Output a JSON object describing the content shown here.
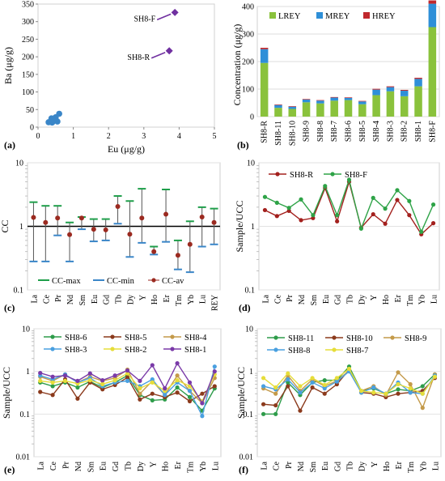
{
  "chart_data": [
    {
      "panel": "(a)",
      "type": "scatter",
      "xlabel": "Eu (μg/g)",
      "ylabel": "Ba (μg/g)",
      "xlim": [
        0,
        5
      ],
      "ylim": [
        0,
        350
      ],
      "xticks": [
        "0",
        "1",
        "2",
        "3",
        "4",
        "5"
      ],
      "yticks": [
        "0",
        "50",
        "100",
        "150",
        "200",
        "250",
        "300",
        "350"
      ],
      "grid": false,
      "points": [
        {
          "x": 0.3,
          "y": 14
        },
        {
          "x": 0.35,
          "y": 16
        },
        {
          "x": 0.4,
          "y": 13
        },
        {
          "x": 0.45,
          "y": 20
        },
        {
          "x": 0.38,
          "y": 25
        },
        {
          "x": 0.5,
          "y": 28
        },
        {
          "x": 0.55,
          "y": 16
        },
        {
          "x": 0.6,
          "y": 38
        }
      ],
      "marker_color": "#3a86c8",
      "labeled_points": [
        {
          "label": "SH8-F",
          "x": 3.88,
          "y": 326,
          "color": "#7030a0"
        },
        {
          "label": "SH8-R",
          "x": 3.72,
          "y": 217,
          "color": "#7030a0"
        }
      ]
    },
    {
      "panel": "(b)",
      "type": "bar",
      "stacked": true,
      "ylabel": "Concentration (μg/g)",
      "ylim": [
        0,
        400
      ],
      "yticks": [
        "0",
        "100",
        "200",
        "300",
        "400"
      ],
      "categories": [
        "SH8-R",
        "SH8-11",
        "SH8-10",
        "SH8-9",
        "SH8-8",
        "SH8-7",
        "SH8-6",
        "SH8-5",
        "SH8-4",
        "SH8-3",
        "SH8-2",
        "SH8-1",
        "SH8-F"
      ],
      "series": [
        {
          "name": "LREY",
          "color": "#8ac23c",
          "values": [
            195,
            32,
            28,
            52,
            48,
            58,
            60,
            45,
            78,
            92,
            74,
            110,
            325
          ]
        },
        {
          "name": "MREY",
          "color": "#2e8fd8",
          "values": [
            50,
            10,
            8,
            10,
            10,
            11,
            8,
            10,
            20,
            15,
            20,
            27,
            85
          ]
        },
        {
          "name": "HREY",
          "color": "#c0282d",
          "values": [
            5,
            2,
            2,
            2,
            2,
            2,
            2,
            2,
            3,
            3,
            3,
            4,
            12
          ]
        }
      ],
      "legend": "top-left"
    },
    {
      "panel": "(c)",
      "type": "line",
      "ylabel": "CC",
      "yscale": "log",
      "ylim": [
        0.1,
        10
      ],
      "yticks": [
        "0.1",
        "1",
        "10"
      ],
      "categories": [
        "La",
        "Ce",
        "Pr",
        "Nd",
        "Sm",
        "Eu",
        "Gd",
        "Tb",
        "Dy",
        "Y",
        "Ho",
        "Er",
        "Tm",
        "Yb",
        "Lu",
        "REY"
      ],
      "series": [
        {
          "name": "CC-max",
          "color": "#1e9e4a",
          "values": [
            2.4,
            2.1,
            2.1,
            1.15,
            1.4,
            1.3,
            1.3,
            3.0,
            2.5,
            3.9,
            0.48,
            3.8,
            0.6,
            1.2,
            2.0,
            1.9
          ]
        },
        {
          "name": "CC-min",
          "color": "#3a86c8",
          "values": [
            0.28,
            0.28,
            0.72,
            0.28,
            0.9,
            0.58,
            0.6,
            1.1,
            0.33,
            0.55,
            0.36,
            0.57,
            0.21,
            0.19,
            0.48,
            0.52
          ]
        },
        {
          "name": "CC-av",
          "color": "#9b2a20",
          "values": [
            1.38,
            1.15,
            1.35,
            0.74,
            1.35,
            0.9,
            0.88,
            2.05,
            0.75,
            1.35,
            0.4,
            1.55,
            0.35,
            0.52,
            1.4,
            1.15
          ]
        }
      ],
      "reference_line": 1,
      "legend": "bottom"
    },
    {
      "panel": "(d)",
      "type": "line",
      "ylabel": "Sample/UCC",
      "yscale": "log",
      "ylim": [
        0.1,
        10
      ],
      "yticks": [
        "0.1",
        "1",
        "10"
      ],
      "categories": [
        "La",
        "Ce",
        "Pr",
        "Nd",
        "Sm",
        "Eu",
        "Gd",
        "Tb",
        "Dy",
        "Y",
        "Ho",
        "Er",
        "Tm",
        "Yb",
        "Lu"
      ],
      "series": [
        {
          "name": "SH8-R",
          "color": "#a3201d",
          "values": [
            1.8,
            1.45,
            1.75,
            1.25,
            1.35,
            4.0,
            1.2,
            5.0,
            0.95,
            1.55,
            1.1,
            2.6,
            1.5,
            0.75,
            1.12
          ]
        },
        {
          "name": "SH8-F",
          "color": "#2ea347",
          "values": [
            2.9,
            2.35,
            1.95,
            2.65,
            1.5,
            4.3,
            1.5,
            5.4,
            0.92,
            2.8,
            1.9,
            3.7,
            2.5,
            0.82,
            2.2
          ]
        }
      ],
      "legend": "top"
    },
    {
      "panel": "(e)",
      "type": "line",
      "ylabel": "Sample/UCC",
      "yscale": "log",
      "ylim": [
        0.01,
        10
      ],
      "yticks": [
        "0.01",
        "0.1",
        "1",
        "10"
      ],
      "categories": [
        "La",
        "Ce",
        "Pr",
        "Nd",
        "Sm",
        "Eu",
        "Gd",
        "Tb",
        "Dy",
        "Y",
        "Ho",
        "Er",
        "Tm",
        "Yb",
        "Lu"
      ],
      "series": [
        {
          "name": "SH8-6",
          "color": "#2e9c4a",
          "values": [
            0.55,
            0.45,
            0.55,
            0.42,
            0.58,
            0.42,
            0.55,
            0.8,
            0.28,
            0.21,
            0.22,
            0.42,
            0.25,
            0.12,
            0.4
          ]
        },
        {
          "name": "SH8-5",
          "color": "#8b3a1c",
          "values": [
            0.33,
            0.28,
            0.65,
            0.23,
            0.55,
            0.38,
            0.48,
            0.72,
            0.22,
            0.3,
            0.25,
            0.32,
            0.2,
            0.3,
            0.45
          ]
        },
        {
          "name": "SH8-4",
          "color": "#c49a4a",
          "values": [
            0.75,
            0.6,
            0.85,
            0.55,
            0.75,
            0.6,
            0.7,
            1.1,
            0.3,
            0.6,
            0.28,
            0.8,
            0.35,
            0.18,
            0.7
          ]
        },
        {
          "name": "SH8-3",
          "color": "#4aa0e0",
          "values": [
            0.8,
            0.65,
            0.85,
            0.55,
            0.7,
            0.45,
            0.55,
            0.6,
            0.45,
            0.65,
            0.28,
            0.55,
            0.35,
            0.09,
            1.3
          ]
        },
        {
          "name": "SH8-2",
          "color": "#e6dd3a",
          "values": [
            0.6,
            0.55,
            0.6,
            0.52,
            0.62,
            0.5,
            0.62,
            0.9,
            0.4,
            0.55,
            0.35,
            0.62,
            0.45,
            0.2,
            0.85
          ]
        },
        {
          "name": "SH8-1",
          "color": "#7a3aa8",
          "values": [
            0.92,
            0.75,
            0.8,
            0.6,
            0.9,
            0.62,
            0.8,
            1.05,
            0.6,
            1.4,
            0.4,
            1.55,
            0.55,
            0.18,
            1.0
          ]
        }
      ],
      "legend": "top"
    },
    {
      "panel": "(f)",
      "type": "line",
      "ylabel": "Sample/UCC",
      "yscale": "log",
      "ylim": [
        0.01,
        10
      ],
      "yticks": [
        "0.01",
        "0.1",
        "1",
        "10"
      ],
      "categories": [
        "La",
        "Ce",
        "Pr",
        "Nd",
        "Sm",
        "Eu",
        "Gd",
        "Tb",
        "Dy",
        "Y",
        "Ho",
        "Er",
        "Tm",
        "Yb",
        "Lu"
      ],
      "series": [
        {
          "name": "SH8-11",
          "color": "#2e9c4a",
          "values": [
            0.1,
            0.1,
            0.55,
            0.28,
            0.55,
            0.62,
            0.62,
            1.3,
            0.35,
            0.4,
            0.3,
            0.38,
            0.35,
            0.45,
            0.85
          ]
        },
        {
          "name": "SH8-10",
          "color": "#8b3a1c",
          "values": [
            0.17,
            0.16,
            0.45,
            0.12,
            0.42,
            0.3,
            0.5,
            1.1,
            0.32,
            0.3,
            0.25,
            0.3,
            0.32,
            0.35,
            0.7
          ]
        },
        {
          "name": "SH8-9",
          "color": "#c49a4a",
          "values": [
            0.4,
            0.3,
            0.8,
            0.35,
            0.65,
            0.45,
            0.6,
            1.05,
            0.35,
            0.45,
            0.28,
            0.95,
            0.5,
            0.14,
            0.85
          ]
        },
        {
          "name": "SH8-8",
          "color": "#4aa0e0",
          "values": [
            0.45,
            0.38,
            0.65,
            0.32,
            0.55,
            0.4,
            0.58,
            1.0,
            0.32,
            0.42,
            0.3,
            0.55,
            0.32,
            0.3,
            0.8
          ]
        },
        {
          "name": "SH8-7",
          "color": "#e6dd3a",
          "values": [
            0.7,
            0.42,
            0.9,
            0.45,
            0.7,
            0.48,
            0.7,
            1.15,
            0.35,
            0.32,
            0.3,
            0.5,
            0.4,
            0.3,
            0.75
          ]
        }
      ],
      "legend": "top"
    }
  ]
}
